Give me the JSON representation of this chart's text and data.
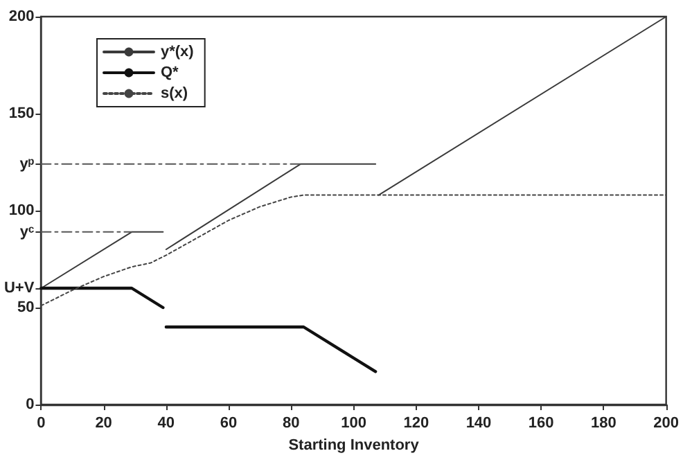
{
  "chart_data": {
    "type": "line",
    "xlabel": "Starting Inventory",
    "xlim": [
      0,
      200
    ],
    "xticks": [
      0,
      20,
      40,
      60,
      80,
      100,
      120,
      140,
      160,
      180,
      200
    ],
    "ylim": [
      0,
      200
    ],
    "yticks": [
      0,
      50,
      {
        "value": 60,
        "label": "U+V"
      },
      {
        "value": 89,
        "label": "yᶜ"
      },
      100,
      {
        "value": 124,
        "label": "yᵖ"
      },
      150,
      200
    ],
    "grid": false,
    "legend": "top left",
    "marker": "none",
    "series": [
      {
        "name": "y*(x)",
        "color": "#3a3a3a",
        "line_style": "solid",
        "x": [
          0,
          29,
          39,
          39.5,
          40,
          83,
          107,
          107.5,
          108,
          200
        ],
        "values": [
          60,
          89,
          89,
          null,
          80,
          124,
          124,
          null,
          108,
          200
        ]
      },
      {
        "name": "Q*",
        "color": "#111111",
        "line_style": "solid",
        "x": [
          0,
          29,
          39,
          39.5,
          40,
          84,
          107
        ],
        "values": [
          60,
          60,
          50,
          null,
          40,
          40,
          17
        ]
      },
      {
        "name": "s(x)",
        "color": "#444444",
        "line_style": "dotted",
        "x": [
          0,
          10,
          20,
          29,
          35,
          40,
          50,
          60,
          70,
          80,
          84,
          200
        ],
        "values": [
          51,
          59,
          66,
          71,
          73,
          77,
          86,
          95,
          102,
          107,
          108,
          108
        ]
      },
      {
        "color": "#555555",
        "line_style": "dashed",
        "x": [
          0,
          83
        ],
        "values": [
          124,
          124
        ]
      },
      {
        "color": "#555555",
        "line_style": "dashed",
        "x": [
          0,
          29
        ],
        "values": [
          89,
          89
        ]
      }
    ]
  }
}
